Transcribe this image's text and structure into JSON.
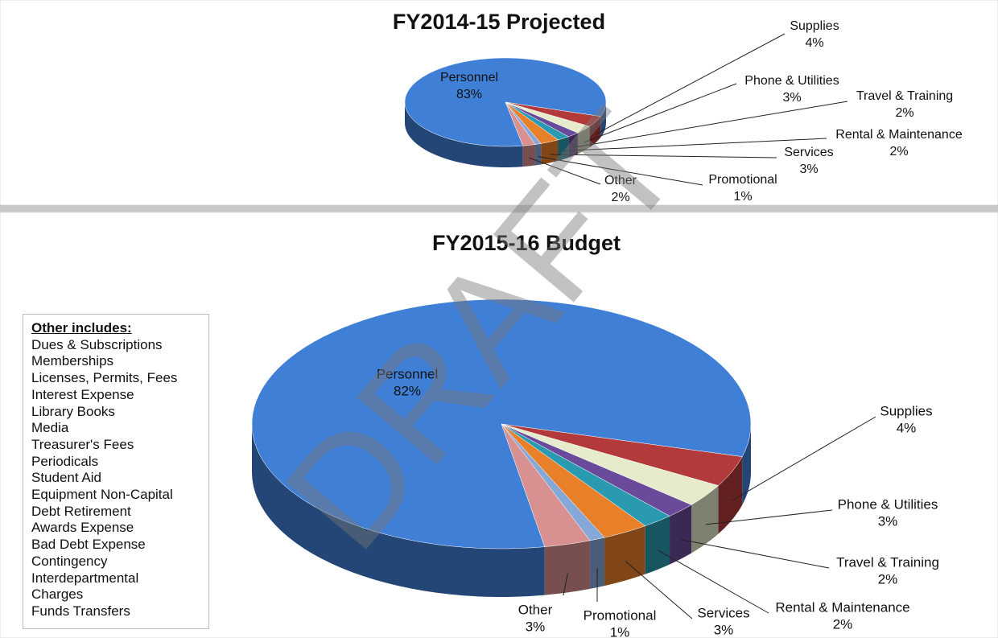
{
  "chart_data": [
    {
      "type": "pie",
      "title": "FY2014-15 Projected",
      "categories": [
        "Personnel",
        "Supplies",
        "Phone & Utilities",
        "Travel & Training",
        "Rental & Maintenance",
        "Services",
        "Promotional",
        "Other"
      ],
      "values": [
        83,
        4,
        3,
        2,
        2,
        3,
        1,
        2
      ],
      "value_labels": [
        "83%",
        "4%",
        "3%",
        "2%",
        "2%",
        "3%",
        "1%",
        "2%"
      ],
      "colors": [
        "#3f7fd6",
        "#b23a3a",
        "#e6ebcc",
        "#6a4a9a",
        "#2a9ab0",
        "#e8802a",
        "#86a8d8",
        "#d89090"
      ]
    },
    {
      "type": "pie",
      "title": "FY2015-16 Budget",
      "categories": [
        "Personnel",
        "Supplies",
        "Phone & Utilities",
        "Travel & Training",
        "Rental & Maintenance",
        "Services",
        "Promotional",
        "Other"
      ],
      "values": [
        82,
        4,
        3,
        2,
        2,
        3,
        1,
        3
      ],
      "value_labels": [
        "82%",
        "4%",
        "3%",
        "2%",
        "2%",
        "3%",
        "1%",
        "3%"
      ],
      "colors": [
        "#3f7fd6",
        "#b23a3a",
        "#e6ebcc",
        "#6a4a9a",
        "#2a9ab0",
        "#e8802a",
        "#86a8d8",
        "#d89090"
      ]
    }
  ],
  "note": {
    "title": "Other includes:",
    "items": [
      "Dues & Subscriptions",
      "Memberships",
      "Licenses, Permits, Fees",
      "Interest Expense",
      "Library Books",
      "Media",
      "Treasurer's Fees",
      "Periodicals",
      "Student Aid",
      "Equipment Non-Capital",
      "Debt Retirement",
      "Awards Expense",
      "Bad Debt Expense",
      "Contingency",
      "Interdepartmental",
      "Charges",
      "Funds Transfers"
    ]
  },
  "watermark": "DRAFT"
}
